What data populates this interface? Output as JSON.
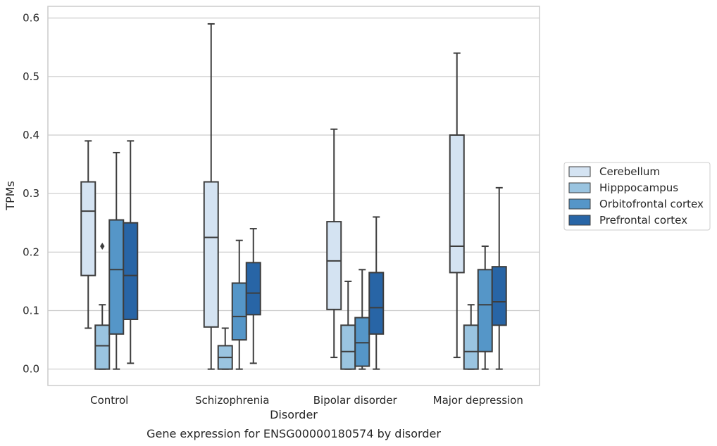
{
  "chart_data": {
    "type": "box",
    "caption": "Gene expression for ENSG00000180574 by disorder",
    "xlabel": "Disorder",
    "ylabel": "TPMs",
    "ylim": [
      -0.028,
      0.62
    ],
    "yticks": [
      "0.0",
      "0.1",
      "0.2",
      "0.3",
      "0.4",
      "0.5",
      "0.6"
    ],
    "grid": true,
    "legend_position": "right-outside",
    "categories": [
      "Control",
      "Schizophrenia",
      "Bipolar disorder",
      "Major depression"
    ],
    "series": [
      {
        "name": "Cerebellum",
        "color": "#d4e3f2",
        "boxes": [
          {
            "whisker_low": 0.07,
            "q1": 0.16,
            "median": 0.27,
            "q3": 0.32,
            "whisker_high": 0.39,
            "outliers": []
          },
          {
            "whisker_low": 0.0,
            "q1": 0.072,
            "median": 0.225,
            "q3": 0.32,
            "whisker_high": 0.59,
            "outliers": []
          },
          {
            "whisker_low": 0.02,
            "q1": 0.102,
            "median": 0.185,
            "q3": 0.252,
            "whisker_high": 0.41,
            "outliers": []
          },
          {
            "whisker_low": 0.02,
            "q1": 0.165,
            "median": 0.21,
            "q3": 0.4,
            "whisker_high": 0.54,
            "outliers": []
          }
        ]
      },
      {
        "name": "Hipppocampus",
        "color": "#9ac4e0",
        "boxes": [
          {
            "whisker_low": 0.0,
            "q1": 0.0,
            "median": 0.04,
            "q3": 0.075,
            "whisker_high": 0.11,
            "outliers": [
              0.21
            ]
          },
          {
            "whisker_low": 0.0,
            "q1": 0.0,
            "median": 0.02,
            "q3": 0.04,
            "whisker_high": 0.07,
            "outliers": []
          },
          {
            "whisker_low": 0.0,
            "q1": 0.0,
            "median": 0.03,
            "q3": 0.075,
            "whisker_high": 0.15,
            "outliers": []
          },
          {
            "whisker_low": 0.0,
            "q1": 0.0,
            "median": 0.03,
            "q3": 0.075,
            "whisker_high": 0.11,
            "outliers": []
          }
        ]
      },
      {
        "name": "Orbitofrontal cortex",
        "color": "#5596c8",
        "boxes": [
          {
            "whisker_low": 0.0,
            "q1": 0.06,
            "median": 0.17,
            "q3": 0.255,
            "whisker_high": 0.37,
            "outliers": []
          },
          {
            "whisker_low": 0.0,
            "q1": 0.05,
            "median": 0.09,
            "q3": 0.147,
            "whisker_high": 0.22,
            "outliers": []
          },
          {
            "whisker_low": 0.0,
            "q1": 0.005,
            "median": 0.045,
            "q3": 0.088,
            "whisker_high": 0.17,
            "outliers": []
          },
          {
            "whisker_low": 0.0,
            "q1": 0.03,
            "median": 0.11,
            "q3": 0.17,
            "whisker_high": 0.21,
            "outliers": []
          }
        ]
      },
      {
        "name": "Prefrontal cortex",
        "color": "#2865a6",
        "boxes": [
          {
            "whisker_low": 0.01,
            "q1": 0.085,
            "median": 0.16,
            "q3": 0.25,
            "whisker_high": 0.39,
            "outliers": []
          },
          {
            "whisker_low": 0.01,
            "q1": 0.093,
            "median": 0.13,
            "q3": 0.182,
            "whisker_high": 0.24,
            "outliers": []
          },
          {
            "whisker_low": 0.0,
            "q1": 0.06,
            "median": 0.105,
            "q3": 0.165,
            "whisker_high": 0.26,
            "outliers": []
          },
          {
            "whisker_low": 0.0,
            "q1": 0.075,
            "median": 0.115,
            "q3": 0.175,
            "whisker_high": 0.31,
            "outliers": []
          }
        ]
      }
    ]
  }
}
